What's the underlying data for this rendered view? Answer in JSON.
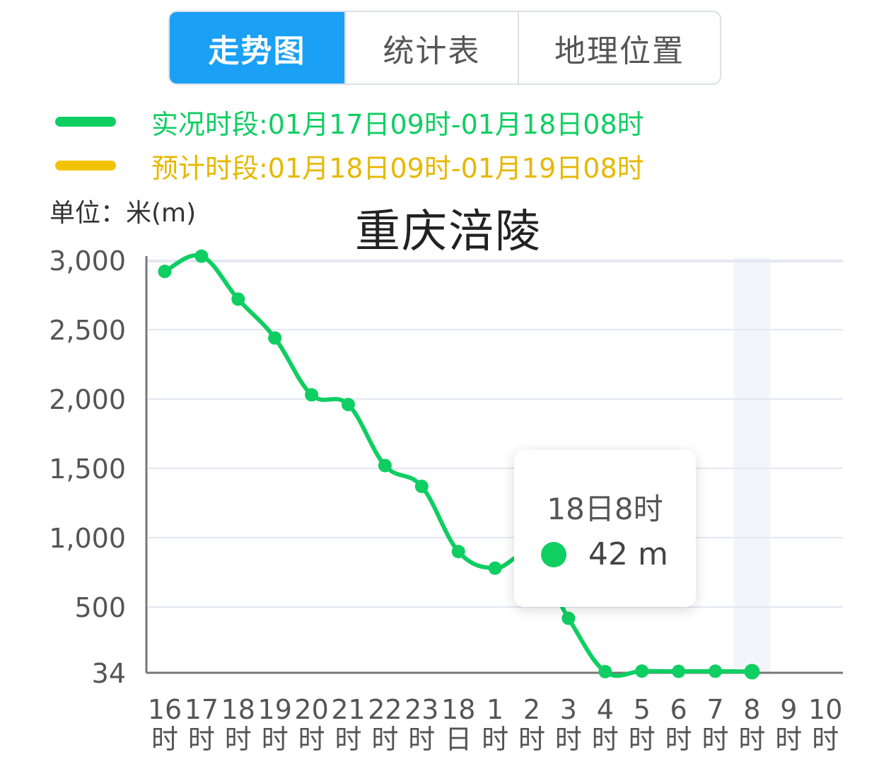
{
  "tabs": [
    {
      "label": "走势图",
      "active": true
    },
    {
      "label": "统计表",
      "active": false
    },
    {
      "label": "地理位置",
      "active": false
    }
  ],
  "legend": {
    "observed": {
      "label": "实况时段:01月17日09时-01月18日08时",
      "color": "#0fce62"
    },
    "forecast": {
      "label": "预计时段:01月18日09时-01月19日08时",
      "color": "#f2c300"
    }
  },
  "unit_label": "单位：米(m)",
  "title": "重庆涪陵",
  "tooltip": {
    "title": "18日8时",
    "value": "42 m"
  },
  "colors": {
    "accent": "#1aa0f5",
    "series": "#0fce62",
    "grid": "#e3e7f2",
    "axis": "#777777"
  },
  "chart_data": {
    "type": "line",
    "title": "重庆涪陵",
    "ylabel": "单位：米(m)",
    "x_tick_labels": [
      [
        "16",
        "时"
      ],
      [
        "17",
        "时"
      ],
      [
        "18",
        "时"
      ],
      [
        "19",
        "时"
      ],
      [
        "20",
        "时"
      ],
      [
        "21",
        "时"
      ],
      [
        "22",
        "时"
      ],
      [
        "23",
        "时"
      ],
      [
        "18",
        "日"
      ],
      [
        "1",
        "时"
      ],
      [
        "2",
        "时"
      ],
      [
        "3",
        "时"
      ],
      [
        "4",
        "时"
      ],
      [
        "5",
        "时"
      ],
      [
        "6",
        "时"
      ],
      [
        "7",
        "时"
      ],
      [
        "8",
        "时"
      ],
      [
        "9",
        "时"
      ],
      [
        "10",
        "时"
      ]
    ],
    "y_tick_labels": [
      "34",
      "500",
      "1,000",
      "1,500",
      "2,000",
      "2,500",
      "3,000"
    ],
    "y_tick_values": [
      34,
      500,
      1000,
      1500,
      2000,
      2500,
      3000
    ],
    "ylim": [
      34,
      3000
    ],
    "highlight_x": "8时",
    "series": [
      {
        "color": "#0fce62",
        "values": [
          2920,
          3030,
          2720,
          2440,
          2030,
          1960,
          1520,
          1370,
          900,
          780,
          870,
          420,
          42,
          46,
          44,
          45,
          42,
          null,
          null
        ]
      }
    ],
    "grid": true,
    "legend_position": "top-left"
  }
}
